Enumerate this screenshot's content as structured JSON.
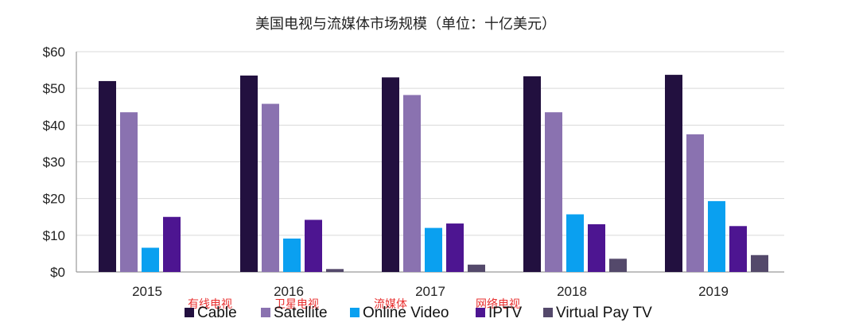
{
  "chart_data": {
    "type": "bar",
    "title": "美国电视与流媒体市场规模（单位：十亿美元）",
    "categories": [
      "2015",
      "2016",
      "2017",
      "2018",
      "2019"
    ],
    "series": [
      {
        "name": "Cable",
        "color": "#22103f",
        "values": [
          52.0,
          53.5,
          53.0,
          53.3,
          53.7
        ]
      },
      {
        "name": "Satellite",
        "color": "#8a72b0",
        "values": [
          43.5,
          45.8,
          48.2,
          43.5,
          37.5
        ]
      },
      {
        "name": "Online Video",
        "color": "#0aa0f0",
        "values": [
          6.6,
          9.1,
          12.0,
          15.7,
          19.3
        ]
      },
      {
        "name": "IPTV",
        "color": "#4d1591",
        "values": [
          15.0,
          14.2,
          13.2,
          13.0,
          12.5
        ]
      },
      {
        "name": "Virtual Pay TV",
        "color": "#54496b",
        "values": [
          0.0,
          0.8,
          2.0,
          3.6,
          4.6
        ]
      }
    ],
    "yticks": [
      "$0",
      "$10",
      "$20",
      "$30",
      "$40",
      "$50",
      "$60"
    ],
    "ylim": [
      0,
      60
    ],
    "grid": true,
    "legend": "bottom",
    "annotations": [
      "有线电视",
      "卫星电视",
      "流媒体",
      "网络电视"
    ]
  }
}
